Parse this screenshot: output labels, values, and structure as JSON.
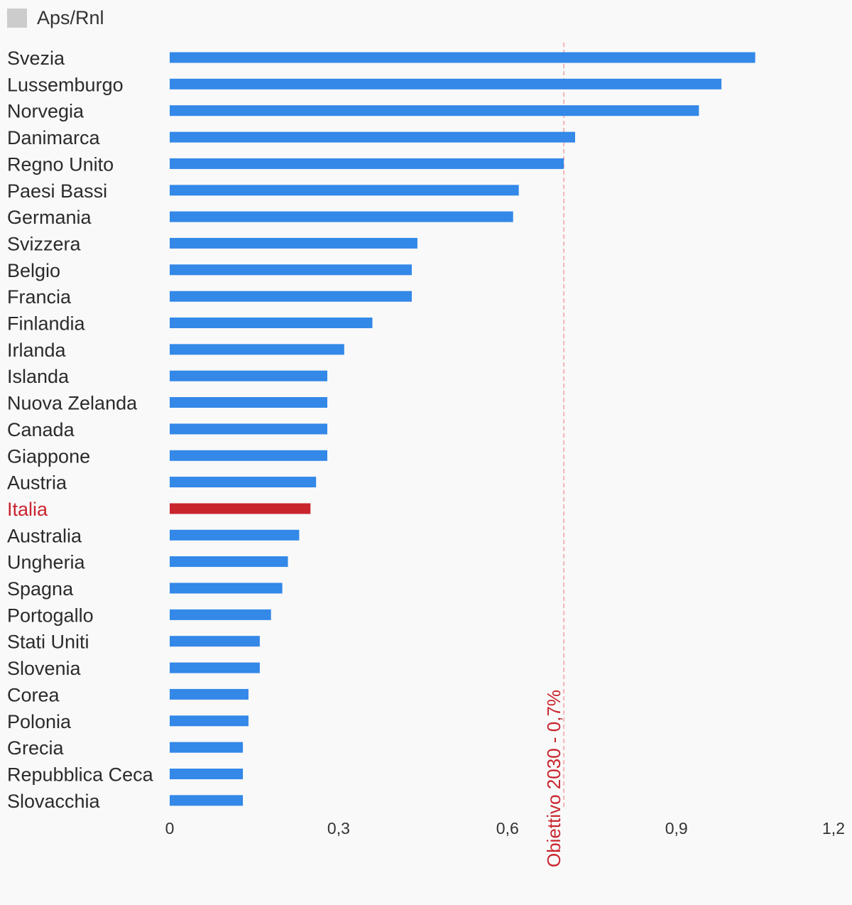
{
  "chart_data": {
    "type": "bar",
    "orientation": "horizontal",
    "legend": {
      "label": "Aps/Rnl",
      "color": "#cccccc",
      "position": "top-left"
    },
    "categories": [
      "Svezia",
      "Lussemburgo",
      "Norvegia",
      "Danimarca",
      "Regno Unito",
      "Paesi Bassi",
      "Germania",
      "Svizzera",
      "Belgio",
      "Francia",
      "Finlandia",
      "Irlanda",
      "Islanda",
      "Nuova Zelanda",
      "Canada",
      "Giappone",
      "Austria",
      "Italia",
      "Australia",
      "Ungheria",
      "Spagna",
      "Portogallo",
      "Stati Uniti",
      "Slovenia",
      "Corea",
      "Polonia",
      "Grecia",
      "Repubblica Ceca",
      "Slovacchia"
    ],
    "values": [
      1.04,
      0.98,
      0.94,
      0.72,
      0.7,
      0.62,
      0.61,
      0.44,
      0.43,
      0.43,
      0.36,
      0.31,
      0.28,
      0.28,
      0.28,
      0.28,
      0.26,
      0.25,
      0.23,
      0.21,
      0.2,
      0.18,
      0.16,
      0.16,
      0.14,
      0.14,
      0.13,
      0.13,
      0.13
    ],
    "highlight": "Italia",
    "xlim": [
      0,
      1.2
    ],
    "xticks": [
      0,
      0.3,
      0.6,
      0.9,
      1.2
    ],
    "xtick_labels": [
      "0",
      "0,3",
      "0,6",
      "0,9",
      "1,2"
    ],
    "reference_line": {
      "value": 0.7,
      "label": "Obiettivo 2030 - 0,7%",
      "style": "dashed"
    },
    "grid": false,
    "colors": {
      "bar": "#3388e8",
      "highlight": "#c9252e",
      "reference": "#f3b5b9",
      "background": "#f9f9f9"
    }
  }
}
